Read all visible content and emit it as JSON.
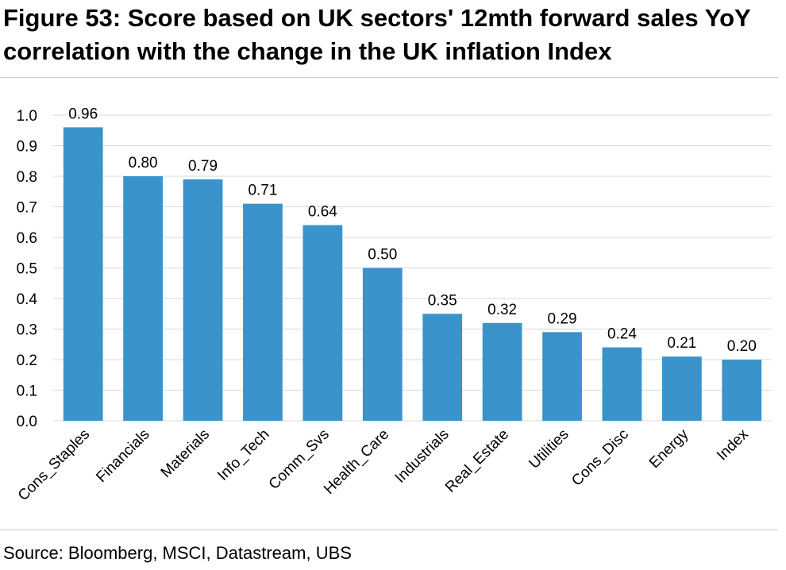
{
  "title": "Figure 53: Score based on UK sectors' 12mth forward sales YoY correlation with the change in the UK inflation Index",
  "source": "Source: Bloomberg, MSCI, Datastream, UBS",
  "colors": {
    "bar": "#3a93cb",
    "grid": "#d9d9d9",
    "rule": "#c8c8c8"
  },
  "chart_data": {
    "type": "bar",
    "title": "",
    "xlabel": "",
    "ylabel": "",
    "ylim": [
      0,
      1.0
    ],
    "yticks": [
      "0.0",
      "0.1",
      "0.2",
      "0.3",
      "0.4",
      "0.5",
      "0.6",
      "0.7",
      "0.8",
      "0.9",
      "1.0"
    ],
    "grid": true,
    "categories": [
      "Cons_Staples",
      "Financials",
      "Materials",
      "Info_Tech",
      "Comm_Svs",
      "Health_Care",
      "Industrials",
      "Real_Estate",
      "Utilities",
      "Cons_Disc",
      "Energy",
      "Index"
    ],
    "values": [
      0.96,
      0.8,
      0.79,
      0.71,
      0.64,
      0.5,
      0.35,
      0.32,
      0.29,
      0.24,
      0.21,
      0.2
    ],
    "data_labels": [
      "0.96",
      "0.80",
      "0.79",
      "0.71",
      "0.64",
      "0.50",
      "0.35",
      "0.32",
      "0.29",
      "0.24",
      "0.21",
      "0.20"
    ]
  }
}
